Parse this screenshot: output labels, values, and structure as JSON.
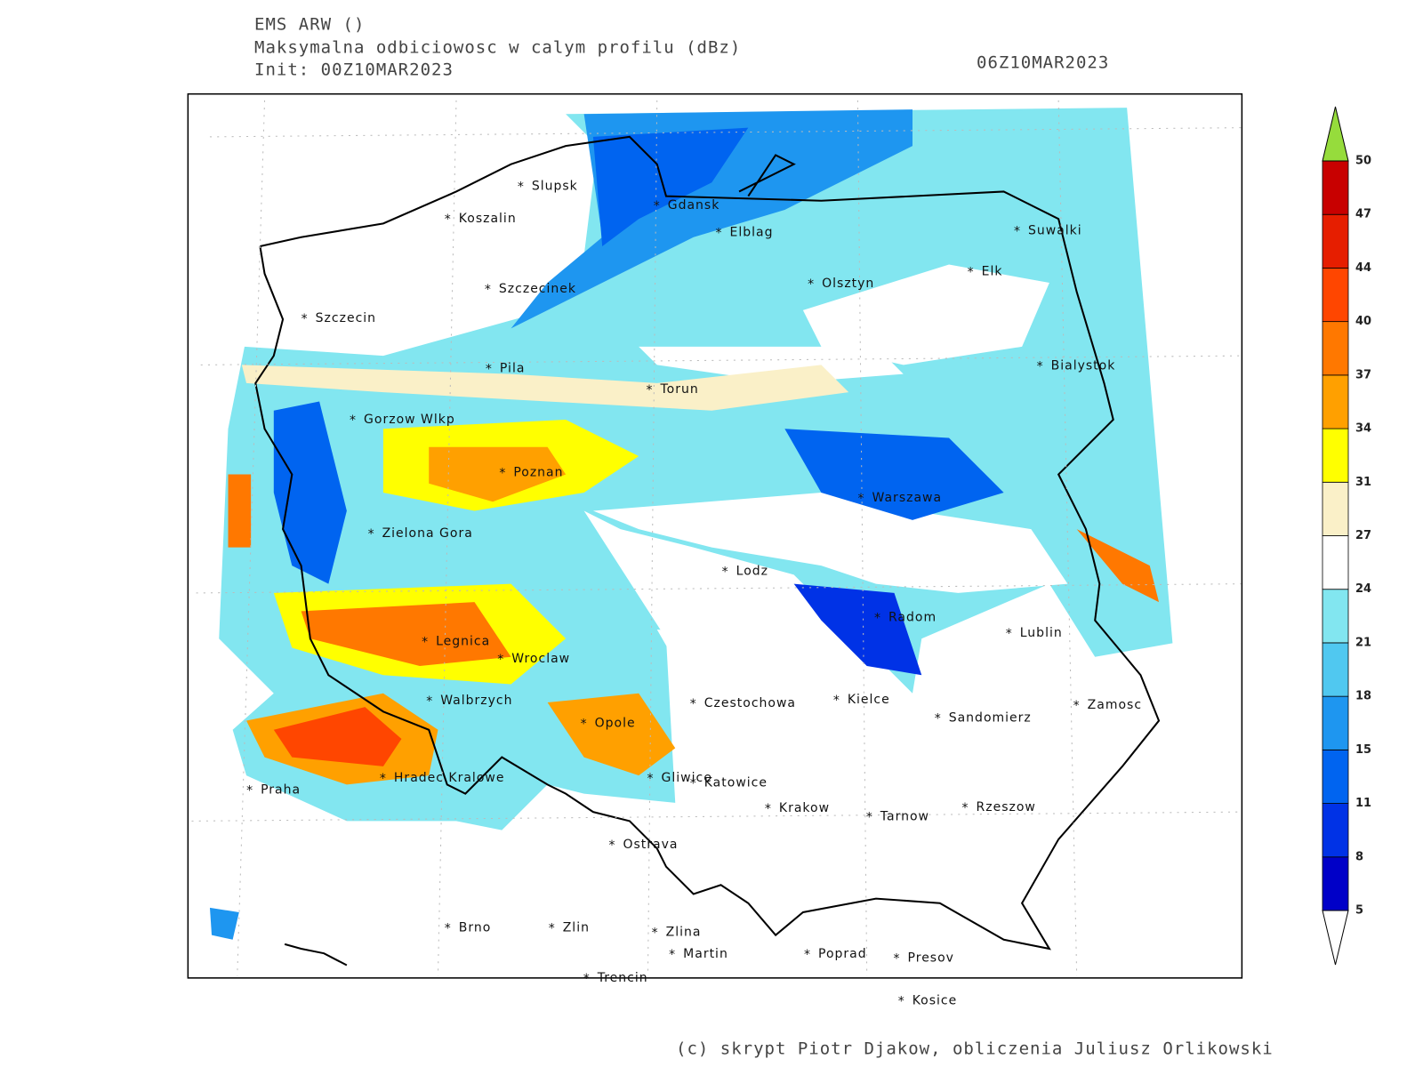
{
  "header": {
    "model": "EMS ARW ()",
    "field": "Maksymalna odbiciowosc w calym profilu (dBz)",
    "init": "Init: 00Z10MAR2023",
    "valid": "06Z10MAR2023"
  },
  "cities": [
    "Slupsk",
    "Koszalin",
    "Gdansk",
    "Elblag",
    "Suwalki",
    "Elk",
    "Olsztyn",
    "Szczecinek",
    "Szczecin",
    "Pila",
    "Bialystok",
    "Torun",
    "Gorzow Wlkp",
    "Poznan",
    "Warszawa",
    "Zielona Gora",
    "Lodz",
    "Radom",
    "Lublin",
    "Legnica",
    "Wroclaw",
    "Walbrzych",
    "Czestochowa",
    "Kielce",
    "Zamosc",
    "Sandomierz",
    "Opole",
    "Hradec Kralowe",
    "Gliwice",
    "Katowice",
    "Praha",
    "Krakow",
    "Tarnow",
    "Rzeszow",
    "Ostrava",
    "Brno",
    "Zlin",
    "Zlina",
    "Martin",
    "Poprad",
    "Presov",
    "Trencin",
    "Kosice"
  ],
  "legend": {
    "levels": [
      5,
      8,
      11,
      15,
      18,
      21,
      24,
      27,
      31,
      34,
      37,
      40,
      44,
      47,
      50
    ],
    "colors": [
      "#0000c8",
      "#0032e6",
      "#0064f0",
      "#1e96f0",
      "#50c8f0",
      "#82e6f0",
      "#ffffff",
      "#faf0c8",
      "#ffff00",
      "#ffa000",
      "#ff7800",
      "#ff4600",
      "#e61e00",
      "#c80000"
    ],
    "over_color": "#96dc3c",
    "under_color": "#ffffff"
  },
  "footer": "(c) skrypt Piotr Djakow, obliczenia Juliusz Orlikowski"
}
